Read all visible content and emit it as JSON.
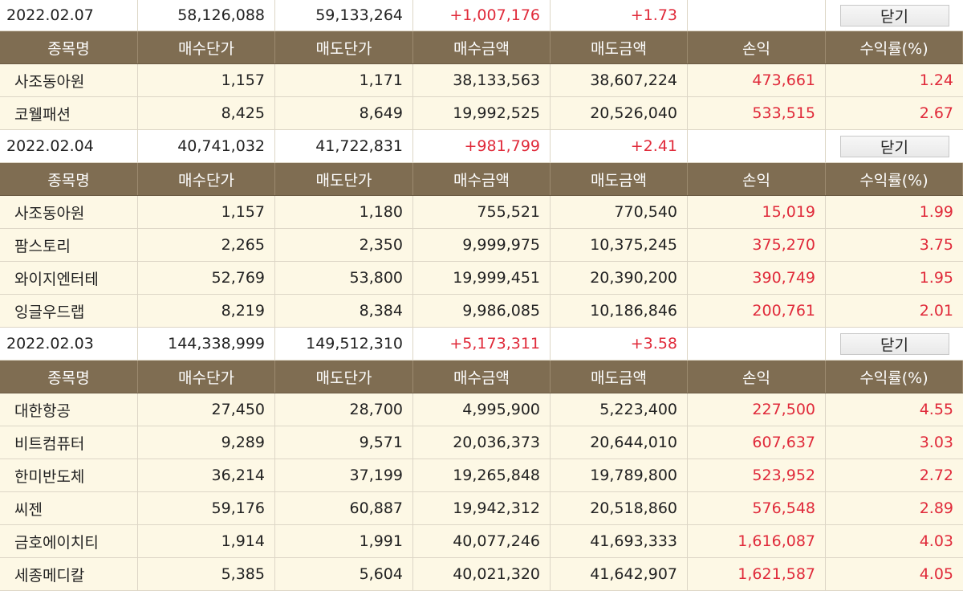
{
  "headers": [
    "종목명",
    "매수단가",
    "매도단가",
    "매수금액",
    "매도금액",
    "손익",
    "수익률(%)"
  ],
  "close_label": "닫기",
  "groups": [
    {
      "date": "2022.02.07",
      "buy_total": "58,126,088",
      "sell_total": "59,133,264",
      "profit": "+1,007,176",
      "rate": "+1.73",
      "items": [
        {
          "name": "사조동아원",
          "buy_price": "1,157",
          "sell_price": "1,171",
          "buy_amount": "38,133,563",
          "sell_amount": "38,607,224",
          "profit": "473,661",
          "rate": "1.24"
        },
        {
          "name": "코웰패션",
          "buy_price": "8,425",
          "sell_price": "8,649",
          "buy_amount": "19,992,525",
          "sell_amount": "20,526,040",
          "profit": "533,515",
          "rate": "2.67"
        }
      ]
    },
    {
      "date": "2022.02.04",
      "buy_total": "40,741,032",
      "sell_total": "41,722,831",
      "profit": "+981,799",
      "rate": "+2.41",
      "items": [
        {
          "name": "사조동아원",
          "buy_price": "1,157",
          "sell_price": "1,180",
          "buy_amount": "755,521",
          "sell_amount": "770,540",
          "profit": "15,019",
          "rate": "1.99"
        },
        {
          "name": "팜스토리",
          "buy_price": "2,265",
          "sell_price": "2,350",
          "buy_amount": "9,999,975",
          "sell_amount": "10,375,245",
          "profit": "375,270",
          "rate": "3.75"
        },
        {
          "name": "와이지엔터테",
          "buy_price": "52,769",
          "sell_price": "53,800",
          "buy_amount": "19,999,451",
          "sell_amount": "20,390,200",
          "profit": "390,749",
          "rate": "1.95"
        },
        {
          "name": "잉글우드랩",
          "buy_price": "8,219",
          "sell_price": "8,384",
          "buy_amount": "9,986,085",
          "sell_amount": "10,186,846",
          "profit": "200,761",
          "rate": "2.01"
        }
      ]
    },
    {
      "date": "2022.02.03",
      "buy_total": "144,338,999",
      "sell_total": "149,512,310",
      "profit": "+5,173,311",
      "rate": "+3.58",
      "items": [
        {
          "name": "대한항공",
          "buy_price": "27,450",
          "sell_price": "28,700",
          "buy_amount": "4,995,900",
          "sell_amount": "5,223,400",
          "profit": "227,500",
          "rate": "4.55"
        },
        {
          "name": "비트컴퓨터",
          "buy_price": "9,289",
          "sell_price": "9,571",
          "buy_amount": "20,036,373",
          "sell_amount": "20,644,010",
          "profit": "607,637",
          "rate": "3.03"
        },
        {
          "name": "한미반도체",
          "buy_price": "36,214",
          "sell_price": "37,199",
          "buy_amount": "19,265,848",
          "sell_amount": "19,789,800",
          "profit": "523,952",
          "rate": "2.72"
        },
        {
          "name": "씨젠",
          "buy_price": "59,176",
          "sell_price": "60,887",
          "buy_amount": "19,942,312",
          "sell_amount": "20,518,860",
          "profit": "576,548",
          "rate": "2.89"
        },
        {
          "name": "금호에이치티",
          "buy_price": "1,914",
          "sell_price": "1,991",
          "buy_amount": "40,077,246",
          "sell_amount": "41,693,333",
          "profit": "1,616,087",
          "rate": "4.03"
        },
        {
          "name": "세종메디칼",
          "buy_price": "5,385",
          "sell_price": "5,604",
          "buy_amount": "40,021,320",
          "sell_amount": "41,642,907",
          "profit": "1,621,587",
          "rate": "4.05"
        }
      ]
    }
  ],
  "colors": {
    "header_bg": "#7f6d52",
    "row_bg": "#fdf8e5",
    "profit_red": "#e02a3a"
  }
}
